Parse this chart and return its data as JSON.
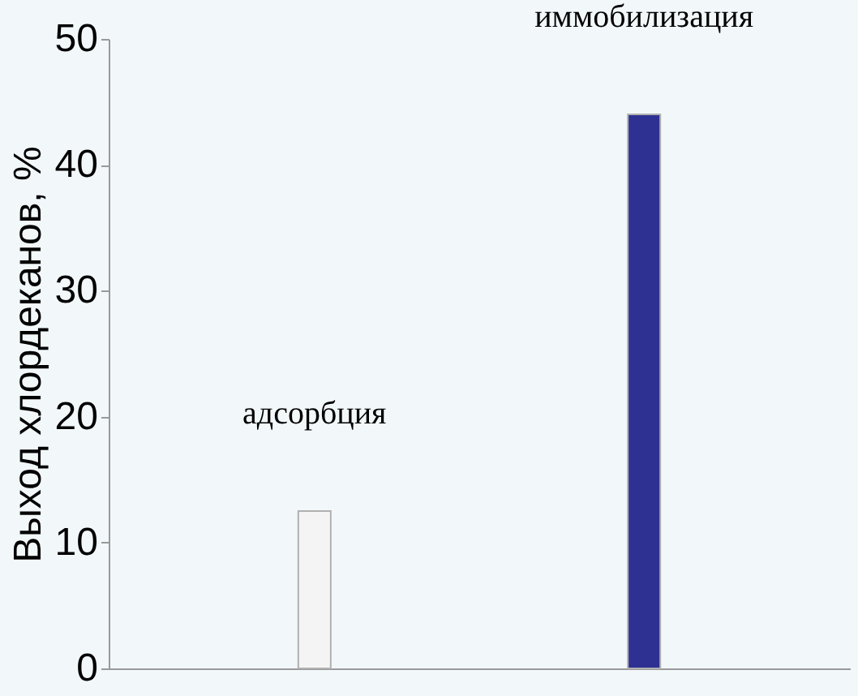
{
  "chart_data": {
    "type": "bar",
    "ylabel": "Выход хлордеканов, %",
    "categories": [
      "адсорбция",
      "иммобилизация"
    ],
    "values": [
      12.5,
      44
    ],
    "colors": [
      "#f4f4f4",
      "#2e3192"
    ],
    "ylim": [
      0,
      50
    ],
    "yticks": [
      0,
      10,
      20,
      30,
      40,
      50
    ],
    "grid": false
  }
}
